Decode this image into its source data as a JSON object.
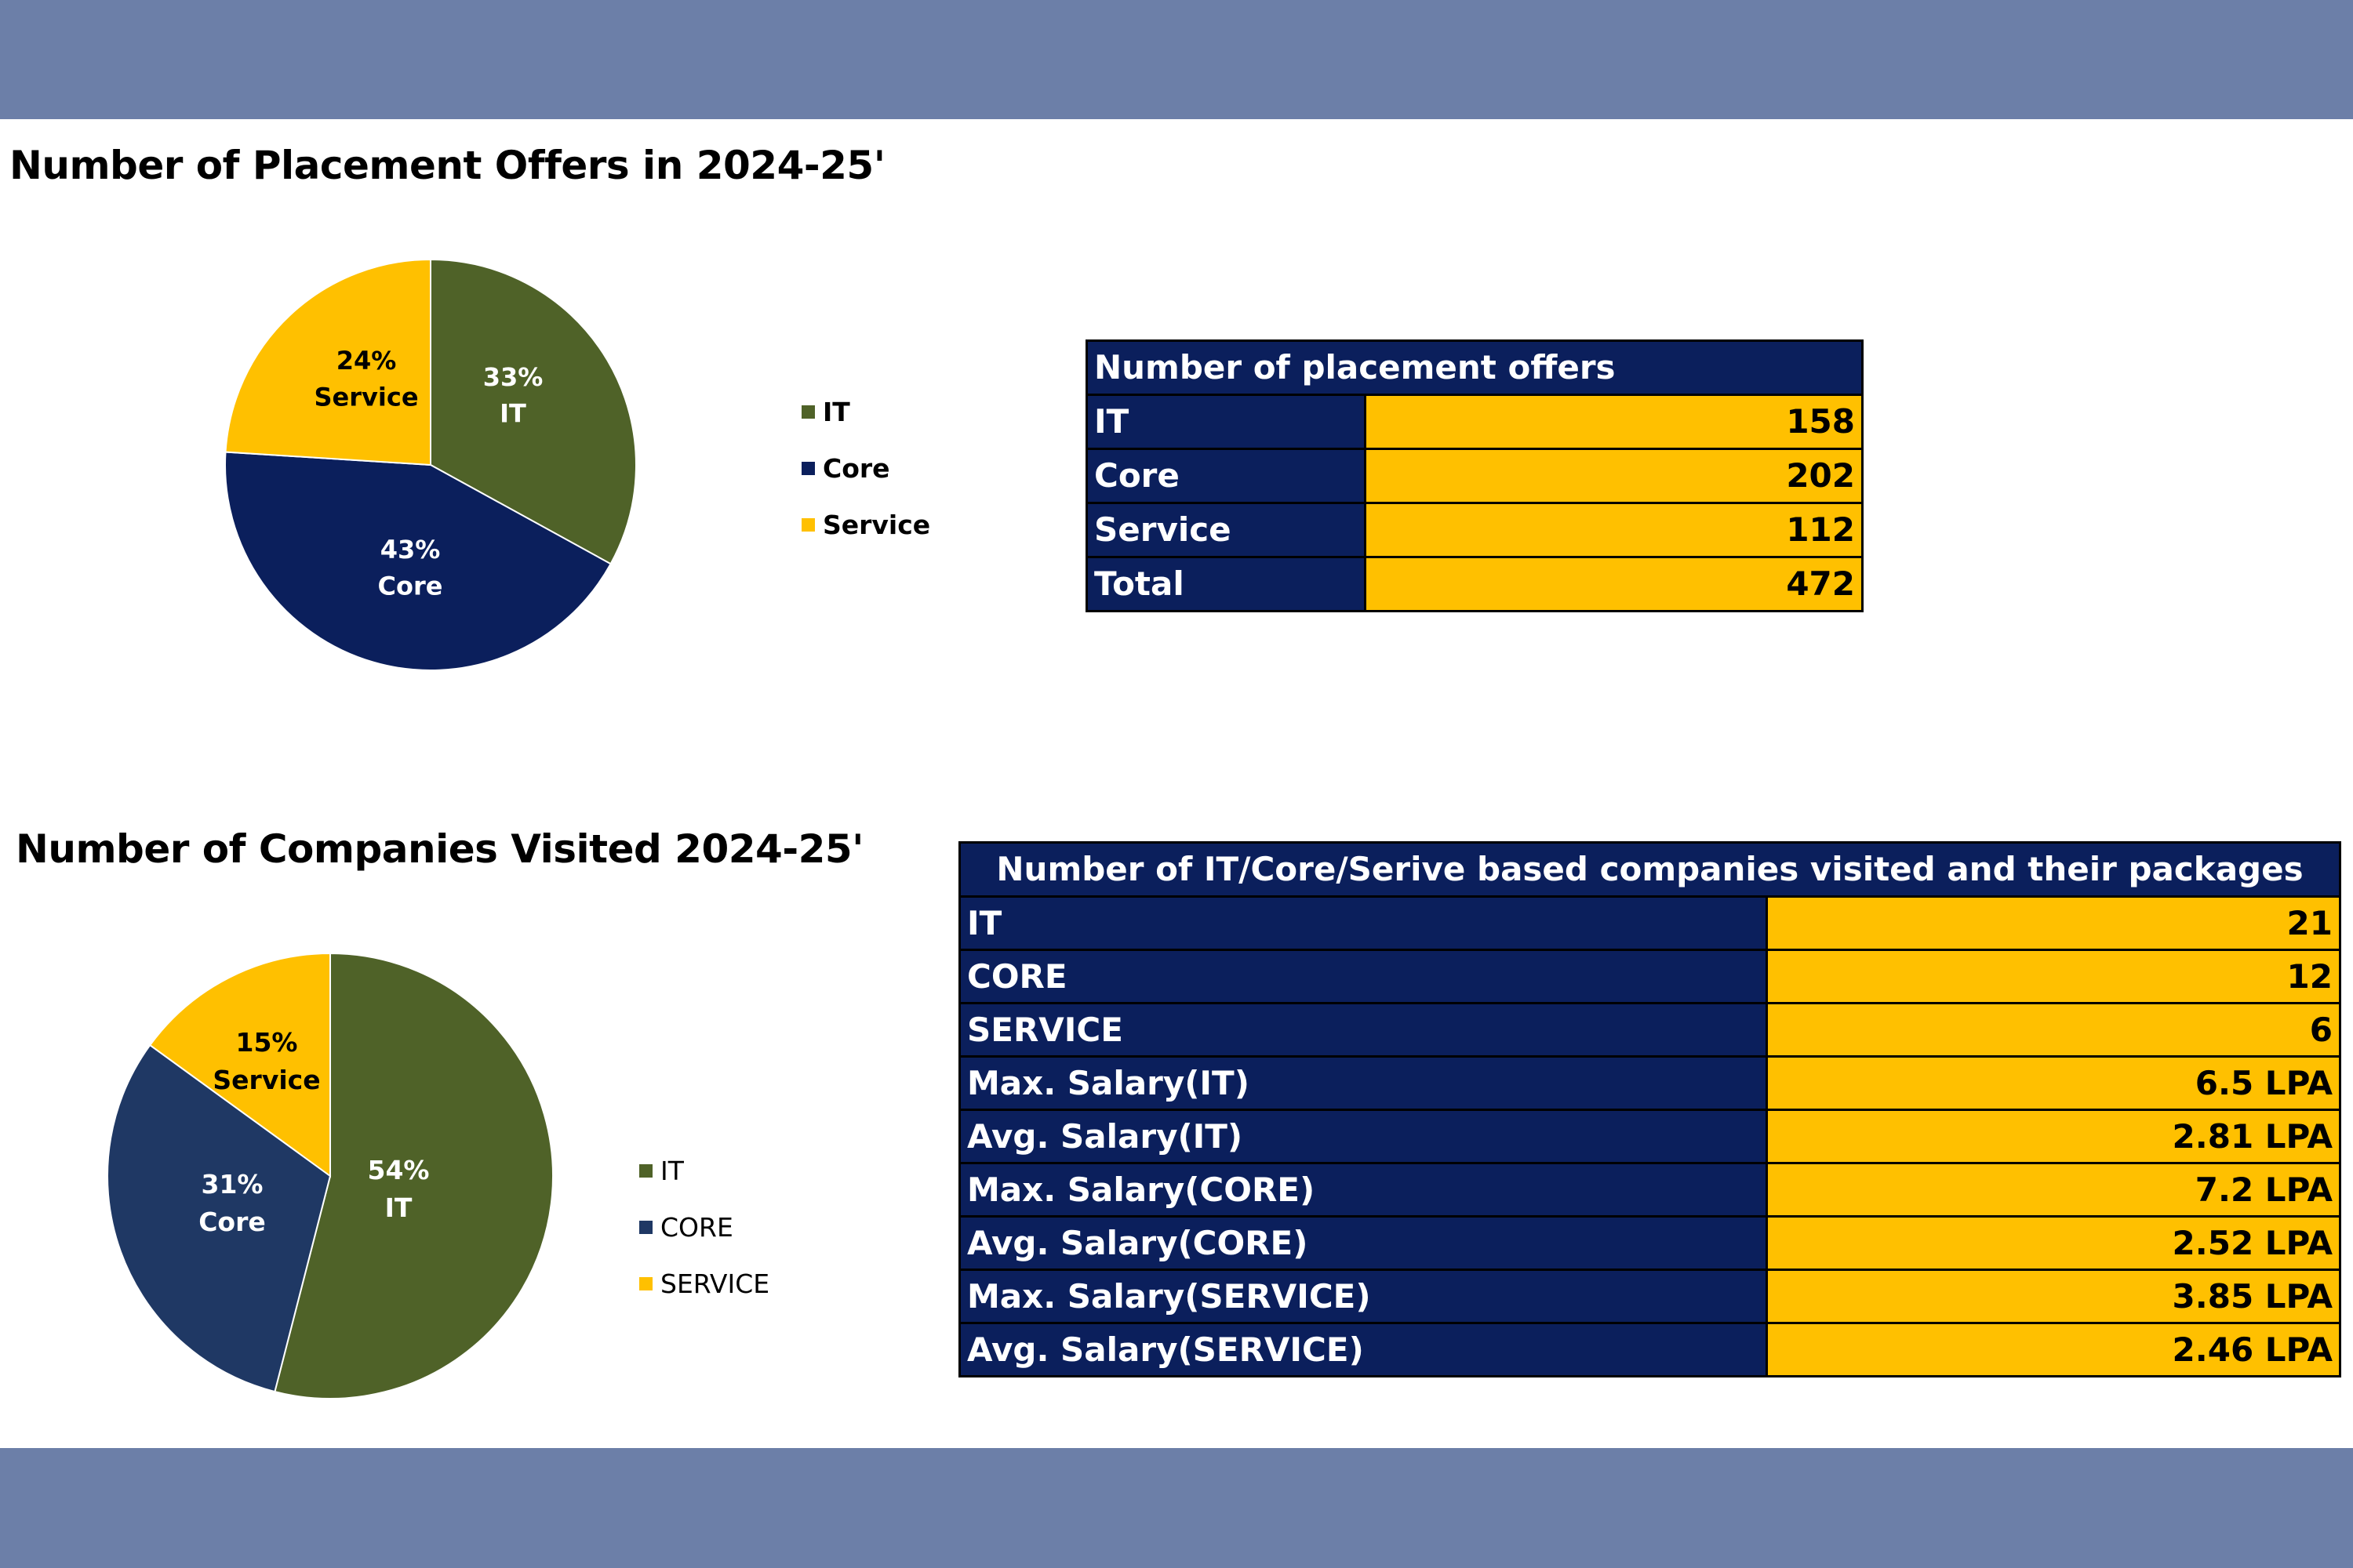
{
  "colors": {
    "band": "#6c7fa8",
    "it": "#4f6228",
    "core": "#0b1f5c",
    "core2": "#1f3864",
    "service": "#ffc000",
    "table_label_bg": "#0b1f5c",
    "table_value_bg": "#ffc000"
  },
  "section1": {
    "title": "Number of Placement Offers in 2024-25'"
  },
  "section2": {
    "title": "Number of Companies Visited 2024-25'"
  },
  "chart_data": [
    {
      "type": "pie",
      "title": "Number of Placement Offers in 2024-25'",
      "categories": [
        "IT",
        "Core",
        "Service"
      ],
      "values": [
        33,
        43,
        24
      ],
      "value_labels": [
        "33%",
        "43%",
        "24%"
      ],
      "legend": [
        "IT",
        "Core",
        "Service"
      ],
      "legend_position": "right"
    },
    {
      "type": "pie",
      "title": "Number of Companies Visited 2024-25'",
      "categories": [
        "IT",
        "Core",
        "Service"
      ],
      "values": [
        54,
        31,
        15
      ],
      "value_labels": [
        "54%",
        "31%",
        "15%"
      ],
      "legend": [
        "IT",
        "CORE",
        "SERVICE"
      ],
      "legend_position": "right"
    }
  ],
  "table1": {
    "header": "Number of placement offers",
    "rows": [
      {
        "label": "IT",
        "value": "158"
      },
      {
        "label": "Core",
        "value": "202"
      },
      {
        "label": "Service",
        "value": "112"
      },
      {
        "label": "Total",
        "value": "472"
      }
    ]
  },
  "table2": {
    "header": "Number of IT/Core/Serive based companies visited and their packages",
    "rows": [
      {
        "label": "IT",
        "value": "21"
      },
      {
        "label": "CORE",
        "value": "12"
      },
      {
        "label": "SERVICE",
        "value": "6"
      },
      {
        "label": "Max. Salary(IT)",
        "value": "6.5 LPA"
      },
      {
        "label": "Avg. Salary(IT)",
        "value": "2.81 LPA"
      },
      {
        "label": "Max. Salary(CORE)",
        "value": "7.2 LPA"
      },
      {
        "label": "Avg. Salary(CORE)",
        "value": "2.52 LPA"
      },
      {
        "label": "Max. Salary(SERVICE)",
        "value": "3.85 LPA"
      },
      {
        "label": "Avg. Salary(SERVICE)",
        "value": "2.46 LPA"
      }
    ]
  }
}
